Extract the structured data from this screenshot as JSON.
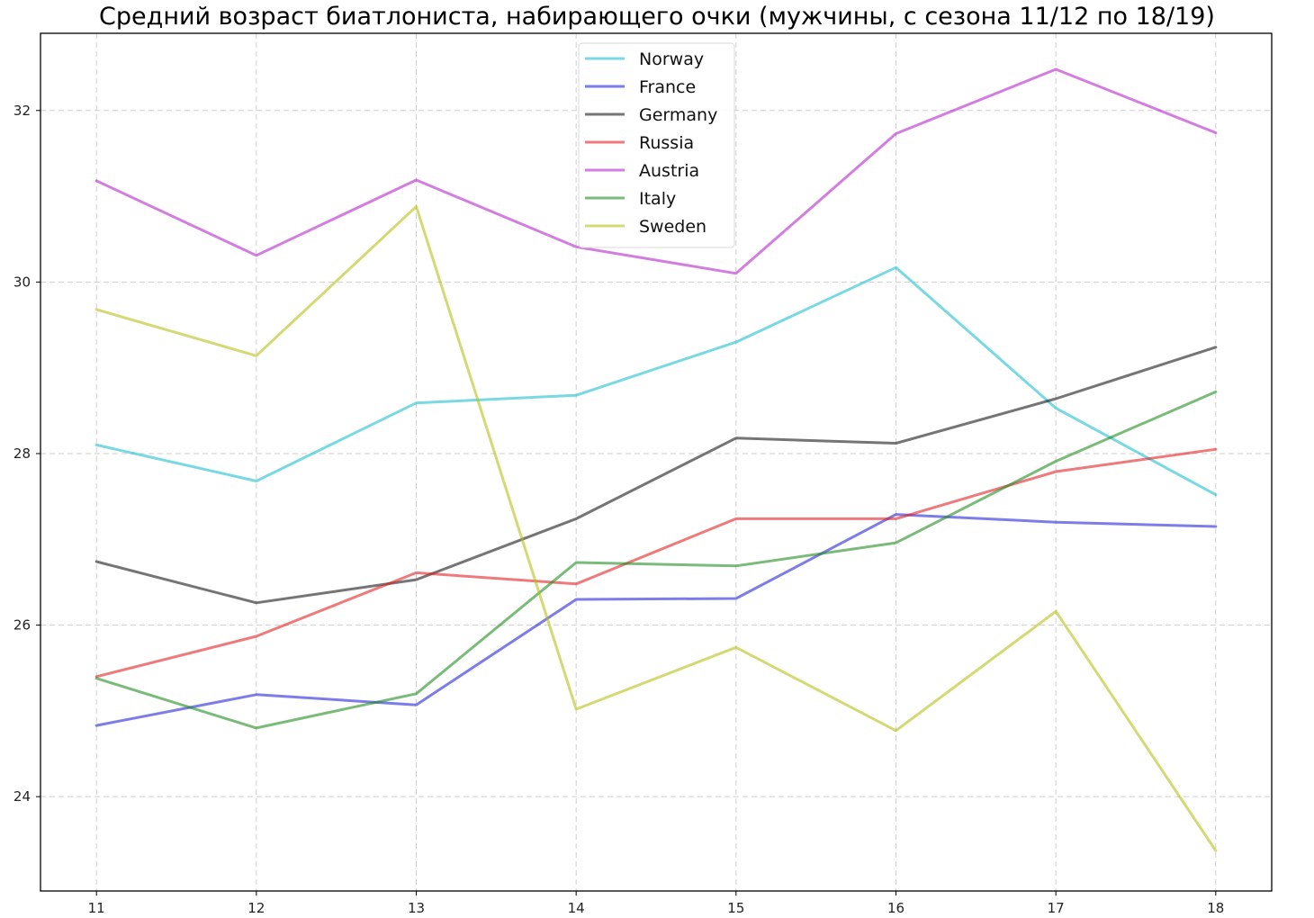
{
  "chart_data": {
    "type": "line",
    "title": "Средний возраст биатлониста, набирающего очки (мужчины, с сезона 11/12 по 18/19)",
    "xlabel": "",
    "ylabel": "",
    "x": [
      11,
      12,
      13,
      14,
      15,
      16,
      17,
      18
    ],
    "xlim": [
      10.65,
      18.35
    ],
    "ylim": [
      22.9,
      32.9
    ],
    "yticks": [
      24,
      26,
      28,
      30,
      32
    ],
    "grid": true,
    "legend_position": "upper-center",
    "series": [
      {
        "name": "Norway",
        "color": "#17becf",
        "values": [
          28.1,
          27.68,
          28.59,
          28.68,
          29.3,
          30.17,
          28.53,
          27.52
        ]
      },
      {
        "name": "France",
        "color": "#1f1fd6",
        "values": [
          24.83,
          25.19,
          25.07,
          26.3,
          26.31,
          27.29,
          27.2,
          27.15
        ]
      },
      {
        "name": "Germany",
        "color": "#111111",
        "values": [
          26.74,
          26.26,
          26.53,
          27.24,
          28.18,
          28.12,
          28.64,
          29.24
        ]
      },
      {
        "name": "Russia",
        "color": "#e31a1c",
        "values": [
          25.4,
          25.87,
          26.61,
          26.48,
          27.24,
          27.24,
          27.79,
          28.05
        ]
      },
      {
        "name": "Austria",
        "color": "#b31fcc",
        "values": [
          31.18,
          30.31,
          31.19,
          30.41,
          30.1,
          31.73,
          32.48,
          31.74
        ]
      },
      {
        "name": "Italy",
        "color": "#1a8a1a",
        "values": [
          25.38,
          24.8,
          25.2,
          26.73,
          26.69,
          26.96,
          27.91,
          28.72
        ]
      },
      {
        "name": "Sweden",
        "color": "#b5bd10",
        "values": [
          29.68,
          29.14,
          30.88,
          25.02,
          25.74,
          24.77,
          26.16,
          23.37
        ]
      }
    ]
  }
}
